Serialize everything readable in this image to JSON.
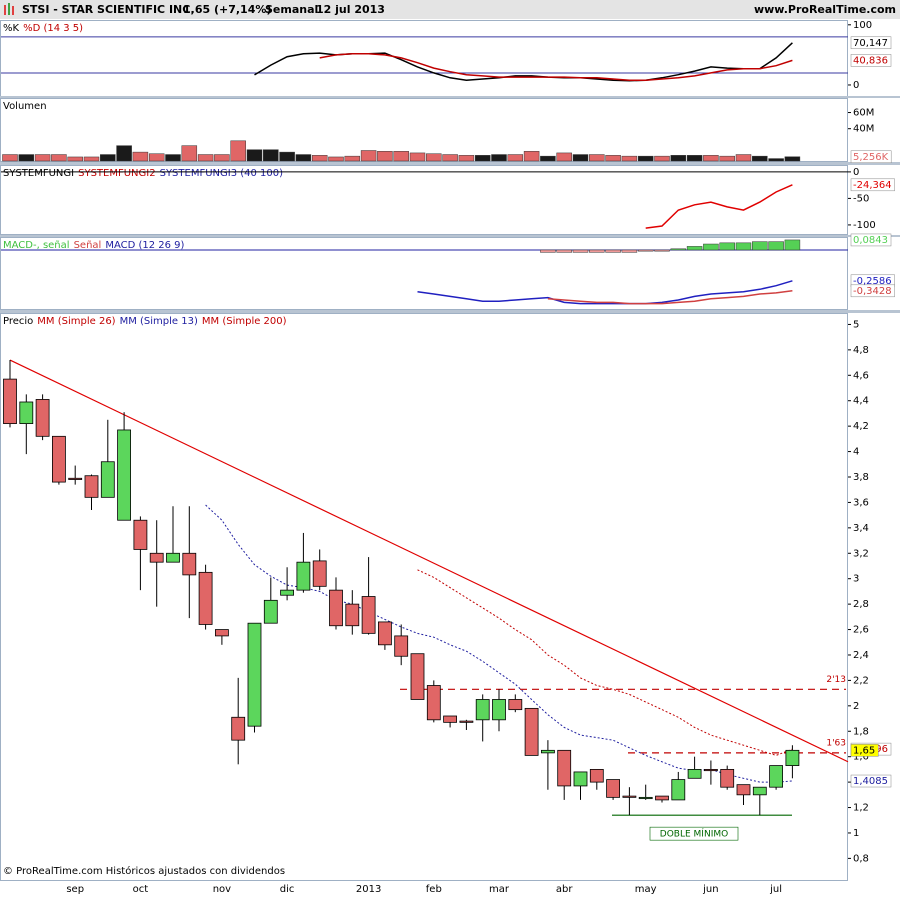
{
  "header": {
    "symbol": "STSI - STAR SCIENTIFIC INC.",
    "quote": "1,65 (+7,14%)",
    "period": "Semanal",
    "date": "12 jul 2013",
    "site": "www.ProRealTime.com"
  },
  "footer": "© ProRealTime.com Históricos ajustados con dividendos",
  "chart_data": [
    {
      "type": "line",
      "title_parts": [
        {
          "text": "%K",
          "color": "#000000"
        },
        {
          "text": "%D (14 3 5)",
          "color": "#c00000"
        }
      ],
      "ylim": [
        -20,
        108
      ],
      "yticks": [
        100,
        0
      ],
      "levels": [
        80,
        20
      ],
      "level_color": "#3a3aa0",
      "series": [
        {
          "name": "%K",
          "color": "#000000",
          "mark": "line",
          "last_label": "70,147",
          "values": [
            null,
            null,
            null,
            null,
            null,
            null,
            null,
            null,
            null,
            null,
            null,
            null,
            null,
            null,
            null,
            16.7,
            33,
            47,
            52,
            53,
            50,
            52,
            52,
            53,
            42,
            30,
            20,
            12,
            8,
            10,
            12,
            15,
            15,
            13,
            12,
            12,
            10,
            8,
            7,
            8,
            12,
            17,
            23,
            30,
            28,
            27,
            27,
            45,
            70.147
          ]
        },
        {
          "name": "%D",
          "color": "#c00000",
          "mark": "line",
          "last_label": "40,836",
          "values": [
            null,
            null,
            null,
            null,
            null,
            null,
            null,
            null,
            null,
            null,
            null,
            null,
            null,
            null,
            null,
            null,
            null,
            null,
            null,
            45,
            50,
            52,
            52,
            50,
            45,
            37,
            28,
            22,
            17,
            15,
            13,
            13,
            13,
            13,
            13,
            12,
            12,
            10,
            8,
            8,
            10,
            12,
            15,
            20,
            25,
            27,
            27,
            32,
            40.836
          ]
        }
      ]
    },
    {
      "type": "bar",
      "title_parts": [
        {
          "text": "Volumen",
          "color": "#000000"
        }
      ],
      "ylim": [
        0,
        78
      ],
      "yticks": [
        {
          "value": 60,
          "label": "60M"
        },
        {
          "value": 40,
          "label": "40M"
        }
      ],
      "series": [
        {
          "name": "Volumen",
          "color": "#e06666",
          "up_color": "#1a1a1a",
          "mark": "bar",
          "last_label": "5,256K",
          "values": [
            8,
            8,
            8,
            8,
            5,
            5,
            8,
            19,
            11,
            9,
            8,
            19,
            8,
            8,
            25,
            14,
            14,
            11,
            8,
            7,
            5,
            6,
            13,
            12,
            12,
            10,
            9,
            8,
            7,
            7,
            8,
            8,
            12,
            6,
            10,
            8,
            8,
            7,
            6,
            6,
            6,
            7,
            7,
            7,
            6,
            8,
            6,
            3,
            5.256
          ]
        }
      ]
    },
    {
      "type": "line",
      "title_parts": [
        {
          "text": "SYSTEMFUNGI",
          "color": "#000000"
        },
        {
          "text": "SYSTEMFUNGI2",
          "color": "#c00000"
        },
        {
          "text": "SYSTEMFUNGI3 (40 100)",
          "color": "#2020a0"
        }
      ],
      "ylim": [
        -119,
        13
      ],
      "yticks": [
        0,
        -50,
        -100
      ],
      "levels": [
        0
      ],
      "level_color": "#000000",
      "series": [
        {
          "name": "SYSTEMFUNGI2",
          "color": "#e00000",
          "mark": "line",
          "last_label": "-24,364",
          "values": [
            null,
            null,
            null,
            null,
            null,
            null,
            null,
            null,
            null,
            null,
            null,
            null,
            null,
            null,
            null,
            null,
            null,
            null,
            null,
            null,
            null,
            null,
            null,
            null,
            null,
            null,
            null,
            null,
            null,
            null,
            null,
            null,
            null,
            null,
            null,
            null,
            null,
            null,
            null,
            -106,
            -102,
            -72,
            -62,
            -57,
            -66,
            -72,
            -57,
            -38,
            -24.364
          ]
        }
      ]
    },
    {
      "type": "line",
      "title_parts": [
        {
          "text": "MACD-, señal",
          "color": "#40c040"
        },
        {
          "text": "Señal",
          "color": "#d04040"
        },
        {
          "text": "MACD (12 26 9)",
          "color": "#2020a0"
        }
      ],
      "ylim": [
        -0.504,
        0.109
      ],
      "levels": [
        0
      ],
      "level_color": "#2020a0",
      "series": [
        {
          "name": "MACD-, señal",
          "color": "#55d055",
          "negative_color": "#f09a9a",
          "mark": "bar",
          "last_label": "0,0843",
          "values": [
            null,
            null,
            null,
            null,
            null,
            null,
            null,
            null,
            null,
            null,
            null,
            null,
            null,
            null,
            null,
            null,
            null,
            null,
            null,
            null,
            null,
            null,
            null,
            null,
            null,
            null,
            null,
            null,
            null,
            null,
            null,
            null,
            null,
            -0.02,
            -0.02,
            -0.02,
            -0.02,
            -0.02,
            -0.02,
            -0.01,
            -0.01,
            0.01,
            0.03,
            0.05,
            0.06,
            0.06,
            0.07,
            0.07,
            0.0843
          ]
        },
        {
          "name": "MACD",
          "color": "#2020c0",
          "mark": "line",
          "last_label": "-0,2586",
          "values": [
            null,
            null,
            null,
            null,
            null,
            null,
            null,
            null,
            null,
            null,
            null,
            null,
            null,
            null,
            null,
            null,
            null,
            null,
            null,
            null,
            null,
            null,
            null,
            null,
            null,
            -0.35,
            -0.37,
            -0.39,
            -0.41,
            -0.43,
            -0.43,
            -0.42,
            -0.41,
            -0.4,
            -0.44,
            -0.45,
            -0.45,
            -0.45,
            -0.45,
            -0.45,
            -0.44,
            -0.42,
            -0.39,
            -0.37,
            -0.36,
            -0.35,
            -0.33,
            -0.3,
            -0.2586
          ]
        },
        {
          "name": "Señal",
          "color": "#d04040",
          "mark": "line",
          "last_label": "-0,3428",
          "values": [
            null,
            null,
            null,
            null,
            null,
            null,
            null,
            null,
            null,
            null,
            null,
            null,
            null,
            null,
            null,
            null,
            null,
            null,
            null,
            null,
            null,
            null,
            null,
            null,
            null,
            null,
            null,
            null,
            null,
            null,
            null,
            null,
            null,
            -0.41,
            -0.42,
            -0.43,
            -0.44,
            -0.44,
            -0.45,
            -0.45,
            -0.45,
            -0.44,
            -0.43,
            -0.41,
            -0.4,
            -0.39,
            -0.37,
            -0.36,
            -0.3428
          ]
        }
      ]
    },
    {
      "type": "candlestick",
      "title_parts": [
        {
          "text": "Precio",
          "color": "#000000"
        },
        {
          "text": "MM (Simple 26)",
          "color": "#c00000"
        },
        {
          "text": "MM (Simple 13)",
          "color": "#2020a0"
        },
        {
          "text": "MM (Simple 200)",
          "color": "#c00000"
        }
      ],
      "ylim": [
        0.63,
        5.09
      ],
      "yticks": [
        5,
        {
          "value": 4.8,
          "label": "4,8"
        },
        {
          "value": 4.6,
          "label": "4,6"
        },
        {
          "value": 4.4,
          "label": "4,4"
        },
        {
          "value": 4.2,
          "label": "4,2"
        },
        4,
        {
          "value": 3.8,
          "label": "3,8"
        },
        {
          "value": 3.6,
          "label": "3,6"
        },
        {
          "value": 3.4,
          "label": "3,4"
        },
        {
          "value": 3.2,
          "label": "3,2"
        },
        3,
        {
          "value": 2.8,
          "label": "2,8"
        },
        {
          "value": 2.6,
          "label": "2,6"
        },
        {
          "value": 2.4,
          "label": "2,4"
        },
        {
          "value": 2.2,
          "label": "2,2"
        },
        2,
        {
          "value": 1.8,
          "label": "1,8"
        },
        {
          "value": 1.6,
          "label": "1,6"
        },
        {
          "value": 1.4,
          "label": "1,4"
        },
        {
          "value": 1.2,
          "label": "1,2"
        },
        1,
        {
          "value": 0.8,
          "label": "0,8"
        }
      ],
      "categories": [
        null,
        null,
        null,
        null,
        "sep",
        null,
        null,
        null,
        "oct",
        null,
        null,
        null,
        null,
        "nov",
        null,
        null,
        null,
        "dic",
        null,
        null,
        null,
        null,
        "2013",
        null,
        null,
        null,
        "feb",
        null,
        null,
        null,
        "mar",
        null,
        null,
        null,
        "abr",
        null,
        null,
        null,
        null,
        "may",
        null,
        null,
        null,
        "jun",
        null,
        null,
        null,
        "jul",
        null
      ],
      "up_color": "#5cd65c",
      "down_color": "#e06666",
      "open": [
        4.57,
        4.22,
        4.41,
        4.12,
        3.79,
        3.81,
        3.64,
        3.46,
        3.46,
        3.2,
        3.13,
        3.2,
        3.05,
        2.6,
        1.91,
        1.84,
        2.65,
        2.87,
        2.91,
        3.14,
        2.91,
        2.8,
        2.86,
        2.66,
        2.55,
        2.41,
        2.16,
        1.92,
        1.88,
        1.89,
        1.89,
        2.05,
        1.98,
        1.63,
        1.65,
        1.37,
        1.5,
        1.42,
        1.29,
        1.27,
        1.29,
        1.26,
        1.43,
        1.5,
        1.5,
        1.38,
        1.3,
        1.36,
        1.53
      ],
      "high": [
        4.72,
        4.45,
        4.45,
        4.12,
        3.89,
        3.82,
        4.25,
        4.31,
        3.49,
        3.46,
        3.57,
        3.57,
        3.11,
        2.6,
        2.22,
        2.65,
        3.01,
        3.09,
        3.36,
        3.23,
        3.01,
        2.91,
        3.17,
        2.66,
        2.64,
        2.41,
        2.2,
        1.92,
        1.89,
        2.09,
        2.13,
        2.09,
        1.98,
        1.73,
        1.65,
        1.48,
        1.5,
        1.42,
        1.36,
        1.38,
        1.29,
        1.48,
        1.6,
        1.57,
        1.53,
        1.38,
        1.36,
        1.53,
        1.69
      ],
      "low": [
        4.19,
        3.98,
        4.09,
        3.74,
        3.74,
        3.54,
        3.64,
        3.46,
        2.91,
        2.78,
        3.13,
        2.69,
        2.6,
        2.48,
        1.54,
        1.79,
        2.65,
        2.83,
        2.89,
        2.91,
        2.6,
        2.56,
        2.56,
        2.44,
        2.32,
        2.05,
        1.87,
        1.83,
        1.81,
        1.72,
        1.8,
        1.95,
        1.61,
        1.34,
        1.26,
        1.26,
        1.34,
        1.26,
        1.14,
        1.26,
        1.24,
        1.26,
        1.43,
        1.38,
        1.34,
        1.22,
        1.14,
        1.34,
        1.43
      ],
      "close": [
        4.22,
        4.39,
        4.12,
        3.76,
        3.78,
        3.64,
        3.92,
        4.17,
        3.23,
        3.13,
        3.2,
        3.03,
        2.64,
        2.55,
        1.73,
        2.65,
        2.83,
        2.91,
        3.13,
        2.94,
        2.63,
        2.63,
        2.57,
        2.48,
        2.39,
        2.05,
        1.89,
        1.87,
        1.87,
        2.05,
        2.05,
        1.97,
        1.61,
        1.65,
        1.37,
        1.48,
        1.4,
        1.28,
        1.28,
        1.28,
        1.26,
        1.42,
        1.5,
        1.49,
        1.36,
        1.3,
        1.36,
        1.53,
        1.65
      ],
      "close_label": "1,65",
      "close_label_bg": "#ffff00",
      "series": [
        {
          "name": "MM (Simple 26)",
          "color": "#c00000",
          "mark": "line",
          "dash": true,
          "last_label": "1,6596",
          "values": [
            null,
            null,
            null,
            null,
            null,
            null,
            null,
            null,
            null,
            null,
            null,
            null,
            null,
            null,
            null,
            null,
            null,
            null,
            null,
            null,
            null,
            null,
            null,
            null,
            null,
            3.07,
            3.01,
            2.93,
            2.85,
            2.77,
            2.69,
            2.6,
            2.52,
            2.4,
            2.32,
            2.22,
            2.16,
            2.13,
            2.09,
            2.03,
            1.97,
            1.91,
            1.83,
            1.77,
            1.73,
            1.69,
            1.65,
            1.61,
            1.6596
          ]
        },
        {
          "name": "MM (Simple 13)",
          "color": "#2020a0",
          "mark": "line",
          "dash": true,
          "last_label": "1,4085",
          "values": [
            null,
            null,
            null,
            null,
            null,
            null,
            null,
            null,
            null,
            null,
            null,
            null,
            3.58,
            3.46,
            3.27,
            3.11,
            3.02,
            2.95,
            2.93,
            2.9,
            2.83,
            2.8,
            2.74,
            2.68,
            2.62,
            2.57,
            2.54,
            2.48,
            2.43,
            2.35,
            2.26,
            2.17,
            2.05,
            1.93,
            1.83,
            1.77,
            1.75,
            1.73,
            1.67,
            1.61,
            1.56,
            1.51,
            1.49,
            1.5,
            1.46,
            1.43,
            1.4,
            1.4,
            1.4085
          ]
        }
      ],
      "trendline": {
        "values": [
          4.72,
          1.56
        ],
        "color": "#e00000"
      },
      "levels": [
        {
          "value": 2.13,
          "label": "2'13",
          "color": "#c00000"
        },
        {
          "value": 1.63,
          "label": "1'63",
          "color": "#c00000"
        }
      ],
      "support": {
        "value": 1.14,
        "label": "DOBLE MÍNIMO",
        "color": "#006600"
      }
    }
  ]
}
